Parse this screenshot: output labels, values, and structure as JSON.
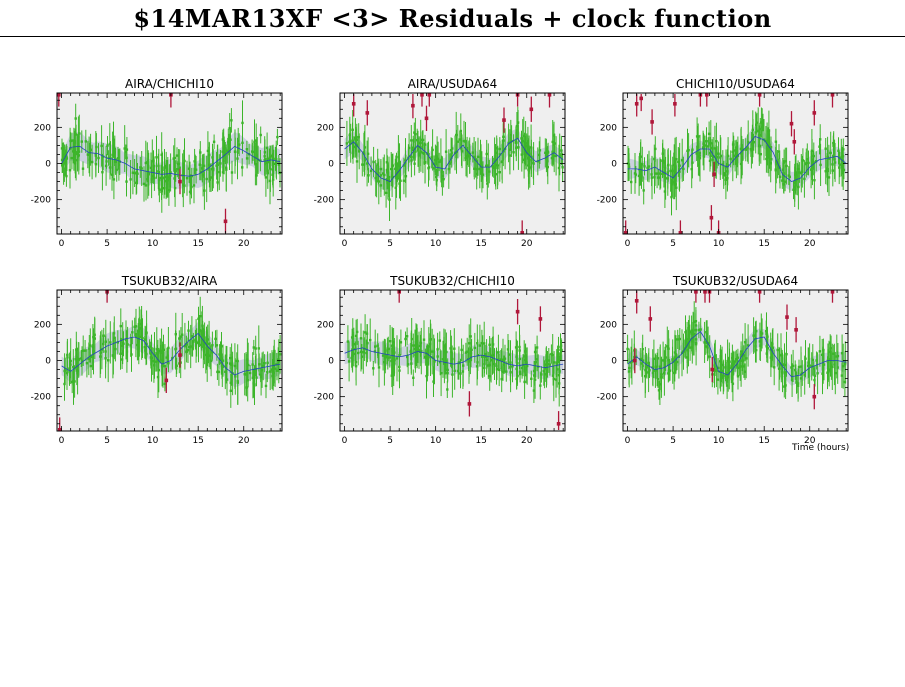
{
  "title": "$14MAR13XF <3> Residuals + clock function",
  "xlabel": "Time (hours)",
  "colors": {
    "plot_bg": "#efefef",
    "good_points": "#3cb52a",
    "flagged_points": "#b0173a",
    "clock_fn": "#2244bb",
    "clock_band": "#c5cbdc"
  },
  "chart_data": [
    {
      "type": "scatter",
      "title": "AIRA/CHICHI10",
      "xlim": [
        -0.5,
        24.2
      ],
      "ylim": [
        -390,
        390
      ],
      "xticks": [
        0,
        5,
        10,
        15,
        20
      ],
      "yticks": [
        -200,
        0,
        200
      ],
      "clock_fn": {
        "x": [
          0,
          1,
          2,
          3,
          4,
          5,
          6,
          7,
          8,
          9,
          10,
          11,
          12,
          13,
          14,
          15,
          16,
          17,
          18,
          19,
          20,
          21,
          22,
          23,
          24
        ],
        "y": [
          0,
          90,
          95,
          60,
          55,
          30,
          20,
          0,
          -30,
          -40,
          -50,
          -60,
          -55,
          -65,
          -70,
          -60,
          -30,
          10,
          50,
          95,
          70,
          40,
          10,
          20,
          10
        ]
      },
      "band_halfwidth": 80,
      "noise": 90,
      "flagged": [
        {
          "x": 12,
          "y": 380
        },
        {
          "x": 13,
          "y": -100
        },
        {
          "x": 18,
          "y": -320
        },
        {
          "x": -0.3,
          "y": 385
        }
      ]
    },
    {
      "type": "scatter",
      "title": "AIRA/USUDA64",
      "xlim": [
        -0.5,
        24.2
      ],
      "ylim": [
        -390,
        390
      ],
      "xticks": [
        0,
        5,
        10,
        15,
        20
      ],
      "yticks": [
        -200,
        0,
        200
      ],
      "clock_fn": {
        "x": [
          0,
          1,
          2,
          3,
          4,
          5,
          6,
          7,
          8,
          9,
          10,
          11,
          12,
          13,
          14,
          15,
          16,
          17,
          18,
          19,
          20,
          21,
          22,
          23,
          24
        ],
        "y": [
          80,
          120,
          60,
          -30,
          -80,
          -100,
          -40,
          30,
          100,
          60,
          -20,
          -30,
          50,
          100,
          40,
          -20,
          -20,
          40,
          110,
          140,
          60,
          10,
          30,
          60,
          20
        ]
      },
      "band_halfwidth": 60,
      "noise": 70,
      "flagged": [
        {
          "x": 1,
          "y": 330
        },
        {
          "x": 2.5,
          "y": 280
        },
        {
          "x": 7.5,
          "y": 320
        },
        {
          "x": 8.5,
          "y": 385
        },
        {
          "x": 9,
          "y": 250
        },
        {
          "x": 9.3,
          "y": 385
        },
        {
          "x": 17.5,
          "y": 240
        },
        {
          "x": 19,
          "y": 385
        },
        {
          "x": 20.5,
          "y": 300
        },
        {
          "x": 22.5,
          "y": 380
        },
        {
          "x": 19.5,
          "y": -385
        }
      ]
    },
    {
      "type": "scatter",
      "title": "CHICHI10/USUDA64",
      "xlim": [
        -0.5,
        24.2
      ],
      "ylim": [
        -390,
        390
      ],
      "xticks": [
        0,
        5,
        10,
        15,
        20
      ],
      "yticks": [
        -200,
        0,
        200
      ],
      "clock_fn": {
        "x": [
          0,
          1,
          2,
          3,
          4,
          5,
          6,
          7,
          8,
          9,
          10,
          11,
          12,
          13,
          14,
          15,
          16,
          17,
          18,
          19,
          20,
          21,
          22,
          23,
          24
        ],
        "y": [
          -30,
          -30,
          -40,
          -20,
          -50,
          -80,
          -20,
          50,
          80,
          80,
          0,
          -20,
          40,
          90,
          150,
          130,
          60,
          -60,
          -100,
          -80,
          -20,
          20,
          30,
          40,
          0
        ]
      },
      "band_halfwidth": 60,
      "noise": 70,
      "flagged": [
        {
          "x": 1,
          "y": 330
        },
        {
          "x": 1.5,
          "y": 360
        },
        {
          "x": 2.7,
          "y": 230
        },
        {
          "x": 5.2,
          "y": 330
        },
        {
          "x": 8,
          "y": 385
        },
        {
          "x": 8.7,
          "y": 385
        },
        {
          "x": 9.2,
          "y": -300
        },
        {
          "x": 9.5,
          "y": -60
        },
        {
          "x": 14.5,
          "y": 385
        },
        {
          "x": 18,
          "y": 220
        },
        {
          "x": 18.3,
          "y": 120
        },
        {
          "x": 20.5,
          "y": 280
        },
        {
          "x": 22.5,
          "y": 380
        },
        {
          "x": 5.8,
          "y": -385
        },
        {
          "x": 10,
          "y": -385
        },
        {
          "x": -0.2,
          "y": -385
        }
      ]
    },
    {
      "type": "scatter",
      "title": "TSUKUB32/AIRA",
      "xlim": [
        -0.5,
        24.2
      ],
      "ylim": [
        -390,
        390
      ],
      "xticks": [
        0,
        5,
        10,
        15,
        20
      ],
      "yticks": [
        -200,
        0,
        200
      ],
      "clock_fn": {
        "x": [
          0,
          1,
          2,
          3,
          4,
          5,
          6,
          7,
          8,
          9,
          10,
          11,
          12,
          13,
          14,
          15,
          16,
          17,
          18,
          19,
          20,
          21,
          22,
          23,
          24
        ],
        "y": [
          -30,
          -60,
          -20,
          20,
          50,
          80,
          100,
          120,
          130,
          110,
          40,
          -20,
          0,
          60,
          110,
          150,
          80,
          30,
          -40,
          -80,
          -60,
          -50,
          -40,
          -30,
          -20
        ]
      },
      "band_halfwidth": 70,
      "noise": 80,
      "flagged": [
        {
          "x": 5,
          "y": 390
        },
        {
          "x": 11.5,
          "y": -110
        },
        {
          "x": 13,
          "y": 30
        },
        {
          "x": -0.2,
          "y": -385
        }
      ]
    },
    {
      "type": "scatter",
      "title": "TSUKUB32/CHICHI10",
      "xlim": [
        -0.5,
        24.2
      ],
      "ylim": [
        -390,
        390
      ],
      "xticks": [
        0,
        5,
        10,
        15,
        20
      ],
      "yticks": [
        -200,
        0,
        200
      ],
      "clock_fn": {
        "x": [
          0,
          1,
          2,
          3,
          4,
          5,
          6,
          7,
          8,
          9,
          10,
          11,
          12,
          13,
          14,
          15,
          16,
          17,
          18,
          19,
          20,
          21,
          22,
          23,
          24
        ],
        "y": [
          40,
          60,
          70,
          50,
          40,
          30,
          20,
          30,
          50,
          40,
          0,
          -10,
          -20,
          -10,
          20,
          30,
          20,
          0,
          -20,
          -30,
          -20,
          -30,
          -40,
          -30,
          -20
        ]
      },
      "band_halfwidth": 65,
      "noise": 85,
      "flagged": [
        {
          "x": 6,
          "y": 390
        },
        {
          "x": 13.7,
          "y": -240
        },
        {
          "x": 19,
          "y": 270
        },
        {
          "x": 21.5,
          "y": 230
        },
        {
          "x": 23.5,
          "y": -350
        }
      ]
    },
    {
      "type": "scatter",
      "title": "TSUKUB32/USUDA64",
      "xlim": [
        -0.5,
        24.2
      ],
      "ylim": [
        -390,
        390
      ],
      "xticks": [
        0,
        5,
        10,
        15,
        20
      ],
      "yticks": [
        -200,
        0,
        200
      ],
      "clock_fn": {
        "x": [
          0,
          1,
          2,
          3,
          4,
          5,
          6,
          7,
          8,
          9,
          10,
          11,
          12,
          13,
          14,
          15,
          16,
          17,
          18,
          19,
          20,
          21,
          22,
          23,
          24
        ],
        "y": [
          -20,
          20,
          -20,
          -50,
          -40,
          -10,
          40,
          120,
          160,
          80,
          -60,
          -80,
          -20,
          60,
          120,
          130,
          40,
          -30,
          -90,
          -80,
          -40,
          -20,
          0,
          0,
          -10
        ]
      },
      "band_halfwidth": 55,
      "noise": 70,
      "flagged": [
        {
          "x": 1,
          "y": 330
        },
        {
          "x": 2.5,
          "y": 230
        },
        {
          "x": 7.5,
          "y": 390
        },
        {
          "x": 8.5,
          "y": 390
        },
        {
          "x": 9,
          "y": 390
        },
        {
          "x": 14.5,
          "y": 390
        },
        {
          "x": 17.5,
          "y": 240
        },
        {
          "x": 18.5,
          "y": 170
        },
        {
          "x": 20.5,
          "y": -200
        },
        {
          "x": 22.5,
          "y": 390
        },
        {
          "x": 9.3,
          "y": -50
        },
        {
          "x": 0.8,
          "y": 0
        }
      ]
    }
  ]
}
